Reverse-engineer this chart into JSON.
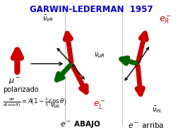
{
  "title": "GARWIN-LEDERMAN  1957",
  "title_color": "#0000cc",
  "title_fontsize": 8.5,
  "bg_color": "#ffffff",
  "fig_width": 2.59,
  "fig_height": 1.94
}
